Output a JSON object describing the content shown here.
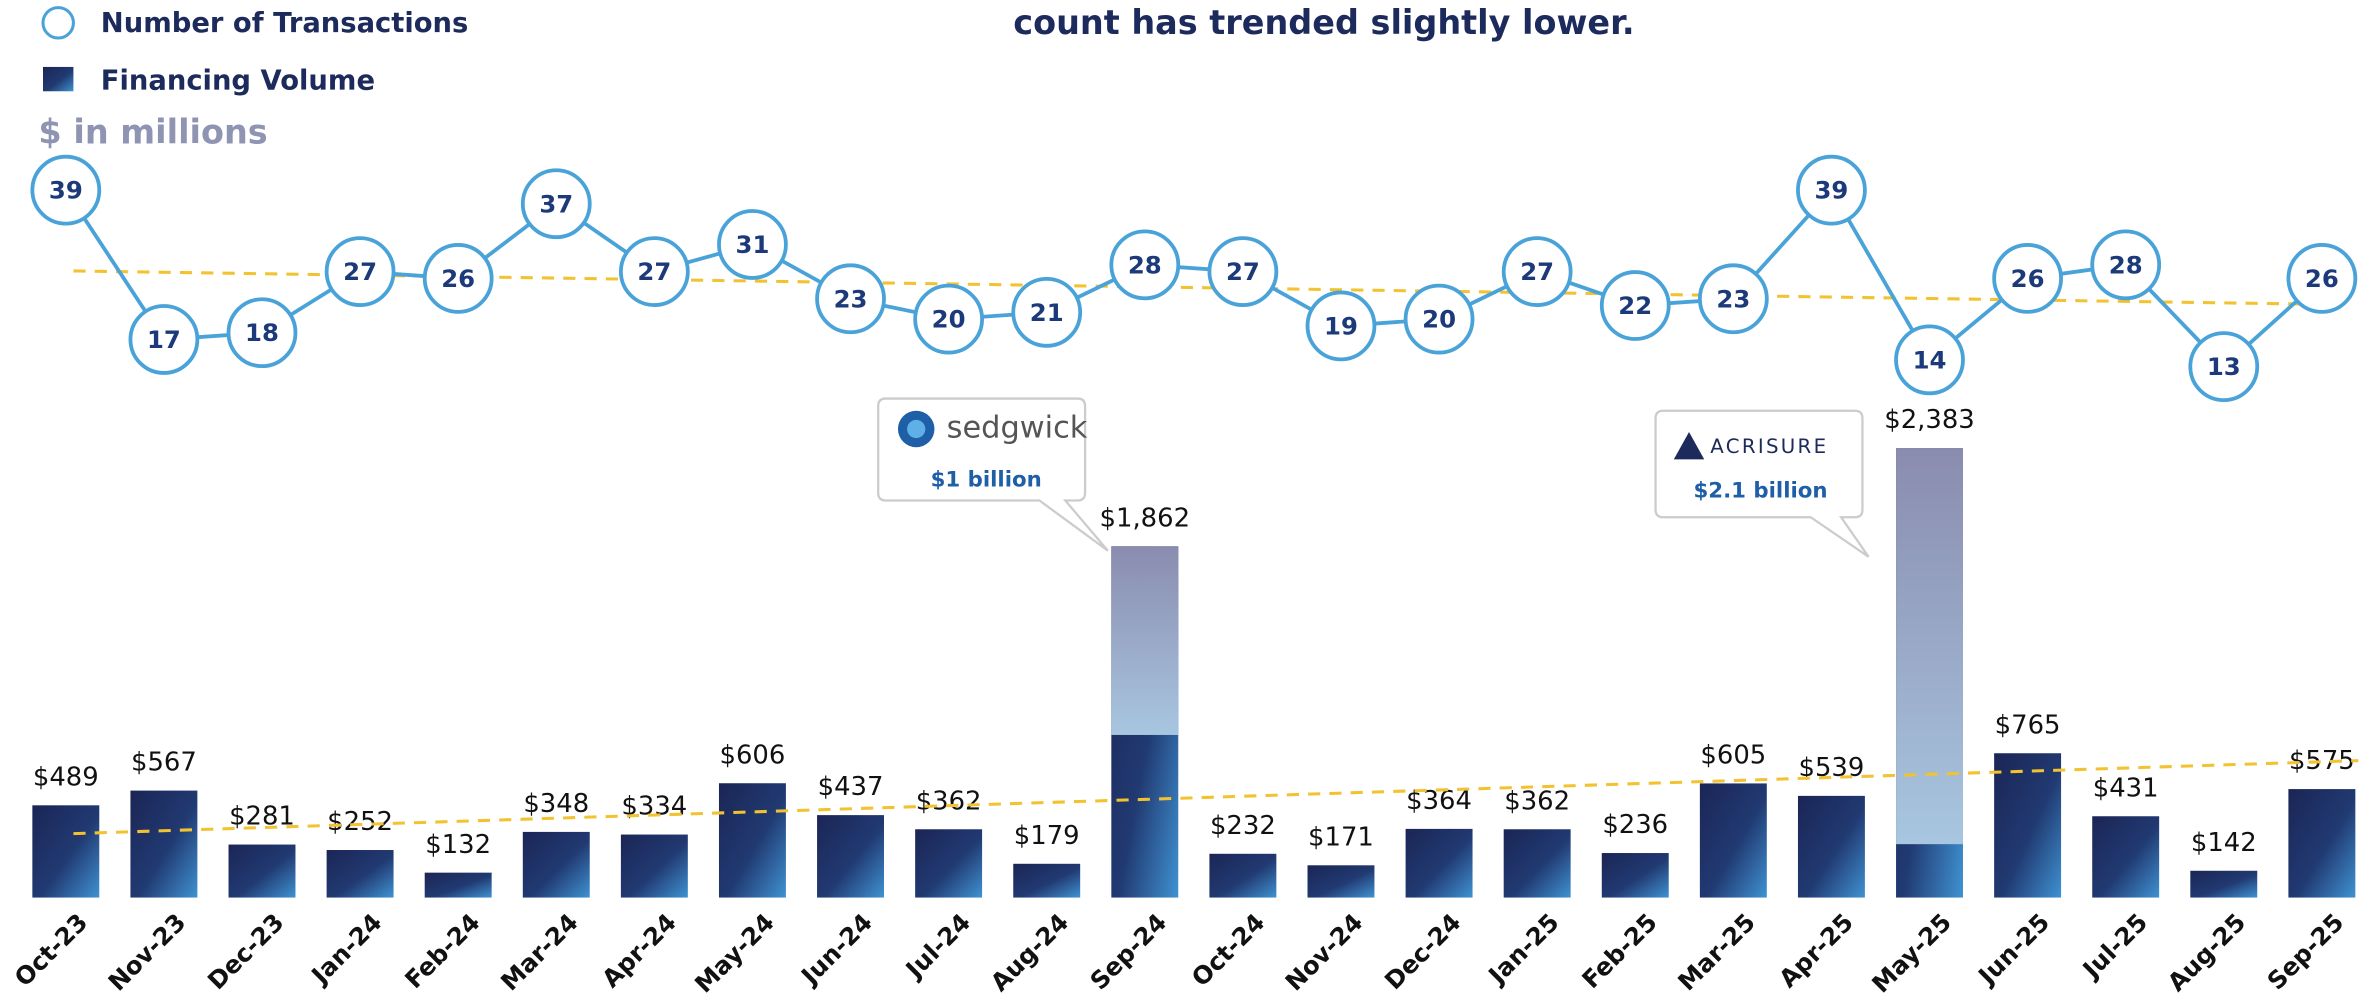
{
  "chart_data": {
    "type": "bar-line",
    "title": "count has trended slightly lower.",
    "unit_note": "$ in millions",
    "categories": [
      "Oct-23",
      "Nov-23",
      "Dec-23",
      "Jan-24",
      "Feb-24",
      "Mar-24",
      "Apr-24",
      "May-24",
      "Jun-24",
      "Jul-24",
      "Aug-24",
      "Sep-24",
      "Oct-24",
      "Nov-24",
      "Dec-24",
      "Jan-25",
      "Feb-25",
      "Mar-25",
      "Apr-25",
      "May-25",
      "Jun-25",
      "Jul-25",
      "Aug-25",
      "Sep-25"
    ],
    "series": [
      {
        "name": "Financing Volume",
        "color": "#1b2555",
        "type": "bar",
        "values": [
          489,
          567,
          281,
          252,
          132,
          348,
          334,
          606,
          437,
          362,
          179,
          1862,
          232,
          171,
          364,
          362,
          236,
          605,
          539,
          2383,
          765,
          431,
          142,
          575
        ],
        "value_labels": [
          "$489",
          "$567",
          "$281",
          "$252",
          "$132",
          "$348",
          "$334",
          "$606",
          "$437",
          "$362",
          "$179",
          "$1,862",
          "$232",
          "$171",
          "$364",
          "$362",
          "$236",
          "$605",
          "$539",
          "$2,383",
          "$765",
          "$431",
          "$142",
          "$575"
        ],
        "trend": [
          339,
          726
        ]
      },
      {
        "name": "Number of Transactions",
        "color": "#4aa3d8",
        "type": "line",
        "values": [
          39,
          17,
          18,
          27,
          26,
          37,
          27,
          31,
          23,
          20,
          21,
          28,
          27,
          19,
          20,
          27,
          22,
          23,
          39,
          14,
          26,
          28,
          13,
          26
        ],
        "trend": [
          27.1,
          22.2
        ]
      }
    ],
    "deals": [
      {
        "name": "sedgwick",
        "label": "$1 billion",
        "value": 1000,
        "month": "Sep-24"
      },
      {
        "name": "ACRISURE",
        "label": "$2.1 billion",
        "value": 2100,
        "month": "May-25"
      }
    ]
  }
}
